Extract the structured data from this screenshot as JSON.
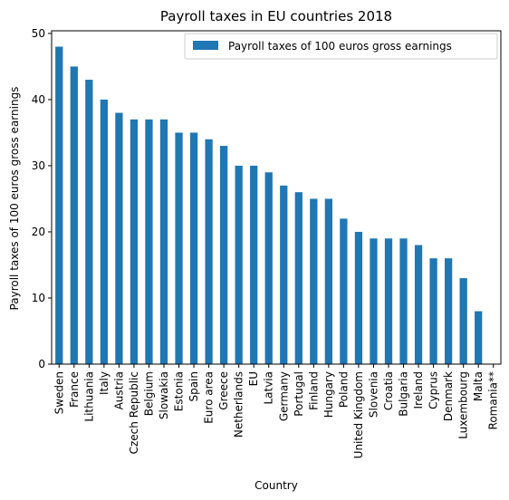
{
  "chart_data": {
    "type": "bar",
    "title": "Payroll taxes in EU countries 2018",
    "xlabel": "Country",
    "ylabel": "Payroll taxes of 100 euros gross earnings",
    "ylim": [
      0,
      50.4
    ],
    "yticks": [
      0,
      10,
      20,
      30,
      40,
      50
    ],
    "grid": false,
    "legend_position": "top-right",
    "bar_color": "#1f77b4",
    "categories": [
      "Sweden",
      "France",
      "Lithuania",
      "Italy",
      "Austria",
      "Czech Republic",
      "Belgium",
      "Slowakia",
      "Estonia",
      "Spain",
      "Euro area",
      "Greece",
      "Netherlands",
      "EU",
      "Latvia",
      "Germany",
      "Portugal",
      "Finland",
      "Hungary",
      "Poland",
      "United Kingdom",
      "Slovenia",
      "Croatia",
      "Bulgaria",
      "Ireland",
      "Cyprus",
      "Denmark",
      "Luxembourg",
      "Malta",
      "Romania**"
    ],
    "series": [
      {
        "name": "Payroll taxes of 100 euros gross earnings",
        "values": [
          48,
          45,
          43,
          40,
          38,
          37,
          37,
          37,
          35,
          35,
          34,
          33,
          30,
          30,
          29,
          27,
          26,
          25,
          25,
          22,
          20,
          19,
          19,
          19,
          18,
          16,
          16,
          13,
          8,
          0
        ]
      }
    ]
  }
}
